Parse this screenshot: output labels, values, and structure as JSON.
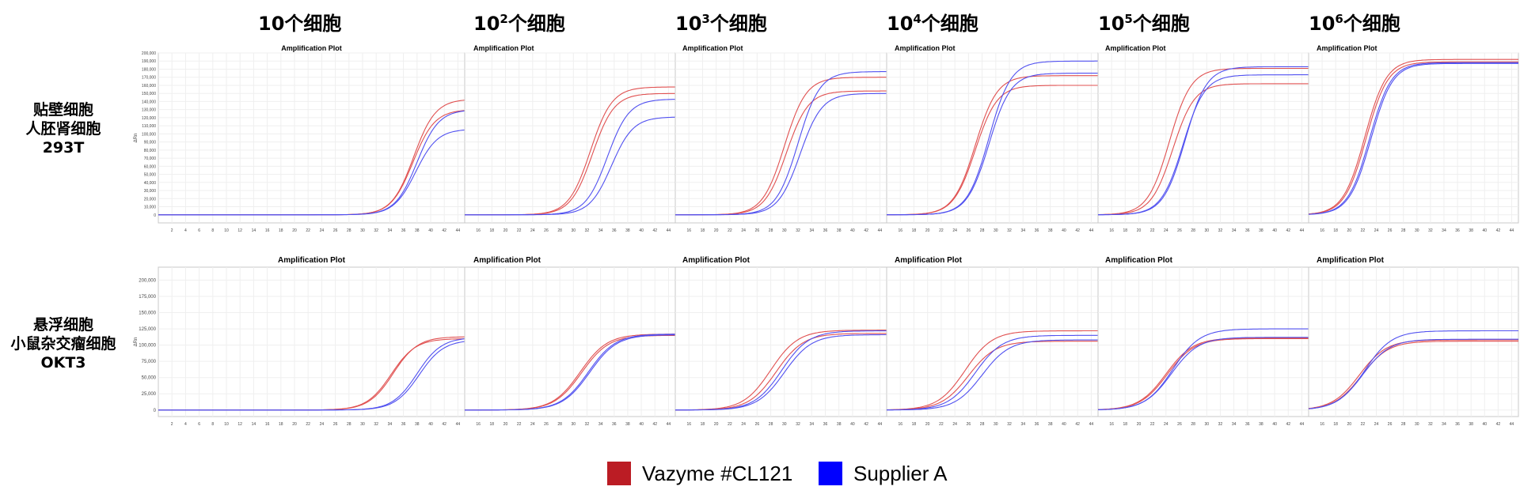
{
  "column_headers": [
    {
      "base": "10",
      "exp": "",
      "suffix": "个细胞"
    },
    {
      "base": "10",
      "exp": "2",
      "suffix": "个细胞"
    },
    {
      "base": "10",
      "exp": "3",
      "suffix": "个细胞"
    },
    {
      "base": "10",
      "exp": "4",
      "suffix": "个细胞"
    },
    {
      "base": "10",
      "exp": "5",
      "suffix": "个细胞"
    },
    {
      "base": "10",
      "exp": "6",
      "suffix": "个细胞"
    }
  ],
  "row_labels": [
    [
      "贴壁细胞",
      "人胚肾细胞",
      "293T"
    ],
    [
      "悬浮细胞",
      "小鼠杂交瘤细胞",
      "OKT3"
    ]
  ],
  "legend": [
    {
      "label": "Vazyme #CL121",
      "color": "#bb1c24"
    },
    {
      "label": "Supplier A",
      "color": "#0000ff"
    }
  ],
  "colors": {
    "vazyme": "#e05050",
    "supplier": "#5050f0",
    "vazyme_dark": "#bb1c24",
    "supplier_dark": "#0000ff"
  },
  "chart_data": [
    {
      "type": "line",
      "title": "Amplification Plot",
      "ylabel": "ΔRn",
      "ylim": [
        -10000,
        200000
      ],
      "yticks": [
        0,
        10000,
        20000,
        30000,
        40000,
        50000,
        60000,
        70000,
        80000,
        90000,
        100000,
        110000,
        120000,
        130000,
        140000,
        150000,
        160000,
        170000,
        180000,
        190000,
        200000
      ],
      "ytick_labels": [
        "0",
        "10,000",
        "20,000",
        "30,000",
        "40,000",
        "50,000",
        "60,000",
        "70,000",
        "80,000",
        "90,000",
        "100,000",
        "110,000",
        "120,000",
        "130,000",
        "140,000",
        "150,000",
        "160,000",
        "170,000",
        "180,000",
        "190,000",
        "200,000"
      ],
      "xlim": [
        0,
        45
      ],
      "xticks": [
        2,
        4,
        6,
        8,
        10,
        12,
        14,
        16,
        18,
        20,
        22,
        24,
        26,
        28,
        30,
        32,
        34,
        36,
        38,
        40,
        42,
        44
      ],
      "series": [
        {
          "group": "vazyme",
          "plateau": 143000,
          "midpoint": 37.5,
          "slope": 1.6
        },
        {
          "group": "vazyme",
          "plateau": 130000,
          "midpoint": 37.4,
          "slope": 1.6
        },
        {
          "group": "supplier",
          "plateau": 130000,
          "midpoint": 38.0,
          "slope": 1.6
        },
        {
          "group": "supplier",
          "plateau": 106000,
          "midpoint": 37.8,
          "slope": 1.6
        }
      ]
    },
    {
      "type": "line",
      "title": "Amplification Plot",
      "ylim": [
        -10000,
        200000
      ],
      "xlim": [
        14,
        45
      ],
      "xticks": [
        16,
        18,
        20,
        22,
        24,
        26,
        28,
        30,
        32,
        34,
        36,
        38,
        40,
        42,
        44
      ],
      "series": [
        {
          "group": "vazyme",
          "plateau": 158000,
          "midpoint": 32.5,
          "slope": 1.6
        },
        {
          "group": "vazyme",
          "plateau": 150000,
          "midpoint": 32.8,
          "slope": 1.6
        },
        {
          "group": "supplier",
          "plateau": 143000,
          "midpoint": 35.0,
          "slope": 1.6
        },
        {
          "group": "supplier",
          "plateau": 121000,
          "midpoint": 35.6,
          "slope": 1.6
        }
      ]
    },
    {
      "type": "line",
      "title": "Amplification Plot",
      "ylim": [
        -10000,
        200000
      ],
      "xlim": [
        14,
        45
      ],
      "xticks": [
        16,
        18,
        20,
        22,
        24,
        26,
        28,
        30,
        32,
        34,
        36,
        38,
        40,
        42,
        44
      ],
      "series": [
        {
          "group": "vazyme",
          "plateau": 170000,
          "midpoint": 30.0,
          "slope": 1.6
        },
        {
          "group": "vazyme",
          "plateau": 153000,
          "midpoint": 30.3,
          "slope": 1.6
        },
        {
          "group": "supplier",
          "plateau": 177000,
          "midpoint": 32.0,
          "slope": 1.6
        },
        {
          "group": "supplier",
          "plateau": 150000,
          "midpoint": 32.3,
          "slope": 1.6
        }
      ]
    },
    {
      "type": "line",
      "title": "Amplification Plot",
      "ylim": [
        -10000,
        200000
      ],
      "xlim": [
        14,
        45
      ],
      "xticks": [
        16,
        18,
        20,
        22,
        24,
        26,
        28,
        30,
        32,
        34,
        36,
        38,
        40,
        42,
        44
      ],
      "series": [
        {
          "group": "vazyme",
          "plateau": 172000,
          "midpoint": 27.0,
          "slope": 1.6
        },
        {
          "group": "vazyme",
          "plateau": 160000,
          "midpoint": 27.0,
          "slope": 1.6
        },
        {
          "group": "supplier",
          "plateau": 190000,
          "midpoint": 29.0,
          "slope": 1.6
        },
        {
          "group": "supplier",
          "plateau": 175000,
          "midpoint": 29.0,
          "slope": 1.6
        }
      ]
    },
    {
      "type": "line",
      "title": "Amplification Plot",
      "ylim": [
        -10000,
        200000
      ],
      "xlim": [
        14,
        45
      ],
      "xticks": [
        16,
        18,
        20,
        22,
        24,
        26,
        28,
        30,
        32,
        34,
        36,
        38,
        40,
        42,
        44
      ],
      "series": [
        {
          "group": "vazyme",
          "plateau": 181000,
          "midpoint": 24.5,
          "slope": 1.6
        },
        {
          "group": "vazyme",
          "plateau": 162000,
          "midpoint": 25.0,
          "slope": 1.6
        },
        {
          "group": "supplier",
          "plateau": 183000,
          "midpoint": 26.8,
          "slope": 1.6
        },
        {
          "group": "supplier",
          "plateau": 173000,
          "midpoint": 26.5,
          "slope": 1.6
        }
      ]
    },
    {
      "type": "line",
      "title": "Amplification Plot",
      "ylim": [
        -10000,
        200000
      ],
      "xlim": [
        14,
        45
      ],
      "xticks": [
        16,
        18,
        20,
        22,
        24,
        26,
        28,
        30,
        32,
        34,
        36,
        38,
        40,
        42,
        44
      ],
      "series": [
        {
          "group": "vazyme",
          "plateau": 192000,
          "midpoint": 22.3,
          "slope": 1.6
        },
        {
          "group": "vazyme",
          "plateau": 189000,
          "midpoint": 22.5,
          "slope": 1.6
        },
        {
          "group": "supplier",
          "plateau": 188000,
          "midpoint": 23.0,
          "slope": 1.6
        },
        {
          "group": "supplier",
          "plateau": 187000,
          "midpoint": 23.2,
          "slope": 1.6
        }
      ]
    },
    {
      "type": "line",
      "title": "Amplification Plot",
      "ylabel": "ΔRn",
      "ylim": [
        -10000,
        220000
      ],
      "yticks": [
        0,
        25000,
        50000,
        75000,
        100000,
        125000,
        150000,
        175000,
        200000
      ],
      "ytick_labels": [
        "0",
        "25,000",
        "50,000",
        "75,000",
        "100,000",
        "125,000",
        "150,000",
        "175,000",
        "200,000"
      ],
      "xlim": [
        0,
        45
      ],
      "xticks": [
        2,
        4,
        6,
        8,
        10,
        12,
        14,
        16,
        18,
        20,
        22,
        24,
        26,
        28,
        30,
        32,
        34,
        36,
        38,
        40,
        42,
        44
      ],
      "series": [
        {
          "group": "vazyme",
          "plateau": 113000,
          "midpoint": 34.5,
          "slope": 1.8
        },
        {
          "group": "vazyme",
          "plateau": 110000,
          "midpoint": 34.2,
          "slope": 1.8
        },
        {
          "group": "supplier",
          "plateau": 112000,
          "midpoint": 38.0,
          "slope": 1.8
        },
        {
          "group": "supplier",
          "plateau": 108000,
          "midpoint": 38.3,
          "slope": 1.8
        }
      ]
    },
    {
      "type": "line",
      "title": "Amplification Plot",
      "ylim": [
        -10000,
        220000
      ],
      "xlim": [
        14,
        45
      ],
      "xticks": [
        16,
        18,
        20,
        22,
        24,
        26,
        28,
        30,
        32,
        34,
        36,
        38,
        40,
        42,
        44
      ],
      "series": [
        {
          "group": "vazyme",
          "plateau": 117000,
          "midpoint": 31.0,
          "slope": 2.0
        },
        {
          "group": "vazyme",
          "plateau": 115000,
          "midpoint": 31.2,
          "slope": 2.0
        },
        {
          "group": "supplier",
          "plateau": 117000,
          "midpoint": 32.2,
          "slope": 2.0
        },
        {
          "group": "supplier",
          "plateau": 116000,
          "midpoint": 32.4,
          "slope": 2.0
        }
      ]
    },
    {
      "type": "line",
      "title": "Amplification Plot",
      "ylim": [
        -10000,
        220000
      ],
      "xlim": [
        14,
        45
      ],
      "xticks": [
        16,
        18,
        20,
        22,
        24,
        26,
        28,
        30,
        32,
        34,
        36,
        38,
        40,
        42,
        44
      ],
      "series": [
        {
          "group": "vazyme",
          "plateau": 123000,
          "midpoint": 28.0,
          "slope": 2.0
        },
        {
          "group": "vazyme",
          "plateau": 118000,
          "midpoint": 28.8,
          "slope": 2.0
        },
        {
          "group": "supplier",
          "plateau": 122000,
          "midpoint": 29.6,
          "slope": 2.0
        },
        {
          "group": "supplier",
          "plateau": 116000,
          "midpoint": 30.0,
          "slope": 2.0
        }
      ]
    },
    {
      "type": "line",
      "title": "Amplification Plot",
      "ylim": [
        -10000,
        220000
      ],
      "xlim": [
        14,
        45
      ],
      "xticks": [
        16,
        18,
        20,
        22,
        24,
        26,
        28,
        30,
        32,
        34,
        36,
        38,
        40,
        42,
        44
      ],
      "series": [
        {
          "group": "vazyme",
          "plateau": 122000,
          "midpoint": 25.5,
          "slope": 2.0
        },
        {
          "group": "vazyme",
          "plateau": 106000,
          "midpoint": 26.0,
          "slope": 2.0
        },
        {
          "group": "supplier",
          "plateau": 115000,
          "midpoint": 27.0,
          "slope": 2.0
        },
        {
          "group": "supplier",
          "plateau": 108000,
          "midpoint": 28.0,
          "slope": 2.0
        }
      ]
    },
    {
      "type": "line",
      "title": "Amplification Plot",
      "ylim": [
        -10000,
        220000
      ],
      "xlim": [
        14,
        45
      ],
      "xticks": [
        16,
        18,
        20,
        22,
        24,
        26,
        28,
        30,
        32,
        34,
        36,
        38,
        40,
        42,
        44
      ],
      "series": [
        {
          "group": "vazyme",
          "plateau": 111000,
          "midpoint": 24.0,
          "slope": 2.0
        },
        {
          "group": "vazyme",
          "plateau": 110000,
          "midpoint": 24.2,
          "slope": 2.0
        },
        {
          "group": "supplier",
          "plateau": 125000,
          "midpoint": 25.0,
          "slope": 2.0
        },
        {
          "group": "supplier",
          "plateau": 112000,
          "midpoint": 24.8,
          "slope": 2.0
        }
      ]
    },
    {
      "type": "line",
      "title": "Amplification Plot",
      "ylim": [
        -10000,
        220000
      ],
      "xlim": [
        14,
        45
      ],
      "xticks": [
        16,
        18,
        20,
        22,
        24,
        26,
        28,
        30,
        32,
        34,
        36,
        38,
        40,
        42,
        44
      ],
      "series": [
        {
          "group": "vazyme",
          "plateau": 108000,
          "midpoint": 21.5,
          "slope": 2.0
        },
        {
          "group": "vazyme",
          "plateau": 106000,
          "midpoint": 21.8,
          "slope": 2.0
        },
        {
          "group": "supplier",
          "plateau": 122000,
          "midpoint": 22.3,
          "slope": 2.0
        },
        {
          "group": "supplier",
          "plateau": 109000,
          "midpoint": 22.0,
          "slope": 2.0
        }
      ]
    }
  ]
}
